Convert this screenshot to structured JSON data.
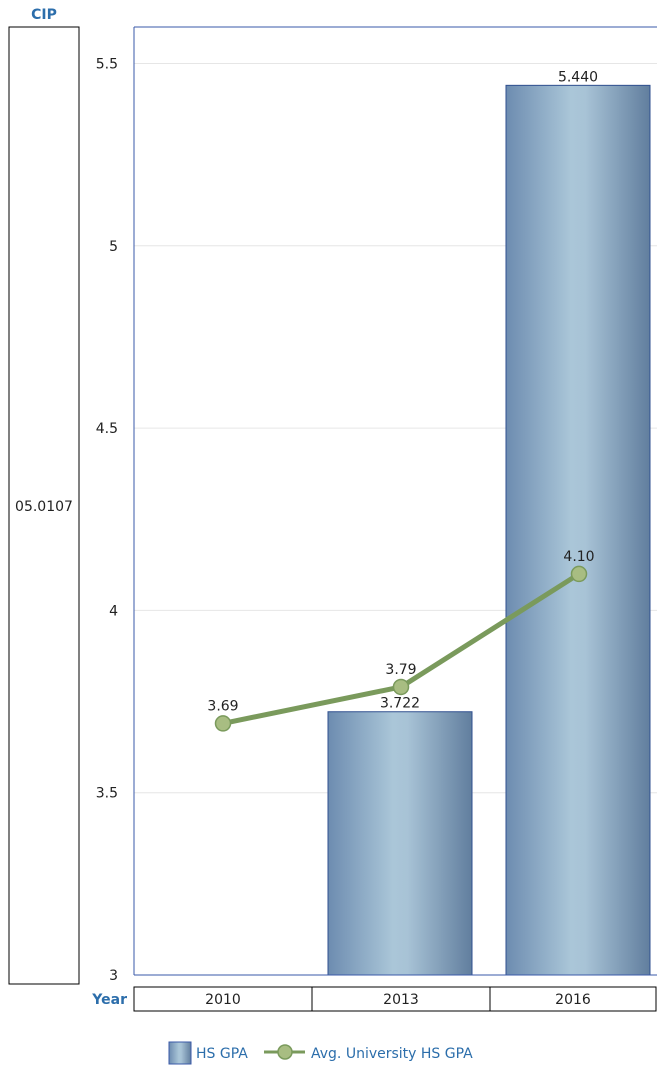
{
  "chart_data": {
    "type": "bar",
    "row_header": "CIP",
    "row_value": "05.0107",
    "column_header": "Year",
    "categories": [
      "2010",
      "2013",
      "2016"
    ],
    "series": [
      {
        "name": "HS GPA",
        "kind": "bar",
        "values": [
          null,
          3.722,
          5.44
        ],
        "labels": [
          "",
          "3.722",
          "5.440"
        ],
        "color": "#8aaccc"
      },
      {
        "name": "Avg. University HS GPA",
        "kind": "line",
        "values": [
          3.69,
          3.79,
          4.1
        ],
        "labels": [
          "3.69",
          "3.79",
          "4.10"
        ],
        "color": "#7a9a5c"
      }
    ],
    "ylim": [
      3,
      5.6
    ],
    "yticks": [
      3,
      3.5,
      4,
      4.5,
      5,
      5.5
    ],
    "ytick_labels": [
      "3",
      "3.5",
      "4",
      "4.5",
      "5",
      "5.5"
    ],
    "grid": true,
    "legend_position": "bottom"
  }
}
